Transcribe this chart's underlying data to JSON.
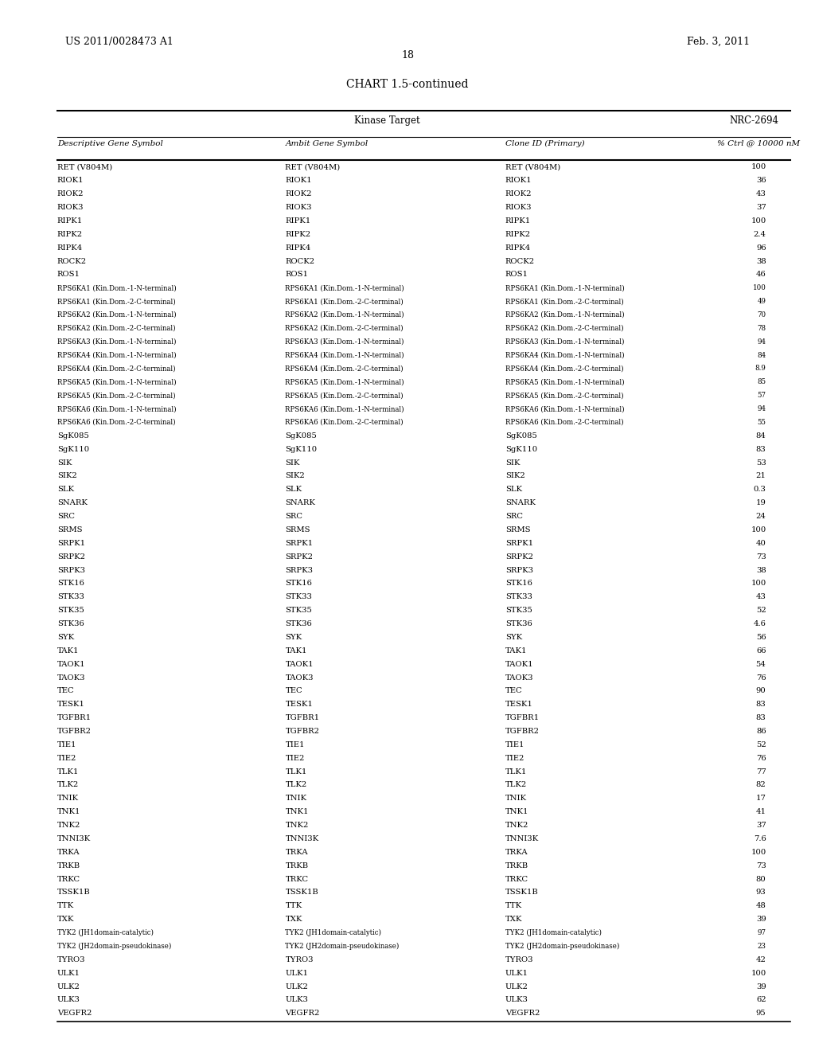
{
  "header_left": "US 2011/0028473 A1",
  "header_right": "Feb. 3, 2011",
  "page_number": "18",
  "chart_title": "CHART 1.5-continued",
  "col_header1": "Kinase Target",
  "col_header2": "NRC-2694",
  "col1_label": "Descriptive Gene Symbol",
  "col2_label": "Ambit Gene Symbol",
  "col3_label": "Clone ID (Primary)",
  "col4_label": "% Ctrl @ 10000 nM",
  "rows": [
    [
      "RET (V804M)",
      "RET (V804M)",
      "RET (V804M)",
      "100"
    ],
    [
      "RIOK1",
      "RIOK1",
      "RIOK1",
      "36"
    ],
    [
      "RIOK2",
      "RIOK2",
      "RIOK2",
      "43"
    ],
    [
      "RIOK3",
      "RIOK3",
      "RIOK3",
      "37"
    ],
    [
      "RIPK1",
      "RIPK1",
      "RIPK1",
      "100"
    ],
    [
      "RIPK2",
      "RIPK2",
      "RIPK2",
      "2.4"
    ],
    [
      "RIPK4",
      "RIPK4",
      "RIPK4",
      "96"
    ],
    [
      "ROCK2",
      "ROCK2",
      "ROCK2",
      "38"
    ],
    [
      "ROS1",
      "ROS1",
      "ROS1",
      "46"
    ],
    [
      "RPS6KA1 (Kin.Dom.-1-N-terminal)",
      "RPS6KA1 (Kin.Dom.-1-N-terminal)",
      "RPS6KA1 (Kin.Dom.-1-N-terminal)",
      "100"
    ],
    [
      "RPS6KA1 (Kin.Dom.-2-C-terminal)",
      "RPS6KA1 (Kin.Dom.-2-C-terminal)",
      "RPS6KA1 (Kin.Dom.-2-C-terminal)",
      "49"
    ],
    [
      "RPS6KA2 (Kin.Dom.-1-N-terminal)",
      "RPS6KA2 (Kin.Dom.-1-N-terminal)",
      "RPS6KA2 (Kin.Dom.-1-N-terminal)",
      "70"
    ],
    [
      "RPS6KA2 (Kin.Dom.-2-C-terminal)",
      "RPS6KA2 (Kin.Dom.-2-C-terminal)",
      "RPS6KA2 (Kin.Dom.-2-C-terminal)",
      "78"
    ],
    [
      "RPS6KA3 (Kin.Dom.-1-N-terminal)",
      "RPS6KA3 (Kin.Dom.-1-N-terminal)",
      "RPS6KA3 (Kin.Dom.-1-N-terminal)",
      "94"
    ],
    [
      "RPS6KA4 (Kin.Dom.-1-N-terminal)",
      "RPS6KA4 (Kin.Dom.-1-N-terminal)",
      "RPS6KA4 (Kin.Dom.-1-N-terminal)",
      "84"
    ],
    [
      "RPS6KA4 (Kin.Dom.-2-C-terminal)",
      "RPS6KA4 (Kin.Dom.-2-C-terminal)",
      "RPS6KA4 (Kin.Dom.-2-C-terminal)",
      "8.9"
    ],
    [
      "RPS6KA5 (Kin.Dom.-1-N-terminal)",
      "RPS6KA5 (Kin.Dom.-1-N-terminal)",
      "RPS6KA5 (Kin.Dom.-1-N-terminal)",
      "85"
    ],
    [
      "RPS6KA5 (Kin.Dom.-2-C-terminal)",
      "RPS6KA5 (Kin.Dom.-2-C-terminal)",
      "RPS6KA5 (Kin.Dom.-2-C-terminal)",
      "57"
    ],
    [
      "RPS6KA6 (Kin.Dom.-1-N-terminal)",
      "RPS6KA6 (Kin.Dom.-1-N-terminal)",
      "RPS6KA6 (Kin.Dom.-1-N-terminal)",
      "94"
    ],
    [
      "RPS6KA6 (Kin.Dom.-2-C-terminal)",
      "RPS6KA6 (Kin.Dom.-2-C-terminal)",
      "RPS6KA6 (Kin.Dom.-2-C-terminal)",
      "55"
    ],
    [
      "SgK085",
      "SgK085",
      "SgK085",
      "84"
    ],
    [
      "SgK110",
      "SgK110",
      "SgK110",
      "83"
    ],
    [
      "SIK",
      "SIK",
      "SIK",
      "53"
    ],
    [
      "SIK2",
      "SIK2",
      "SIK2",
      "21"
    ],
    [
      "SLK",
      "SLK",
      "SLK",
      "0.3"
    ],
    [
      "SNARK",
      "SNARK",
      "SNARK",
      "19"
    ],
    [
      "SRC",
      "SRC",
      "SRC",
      "24"
    ],
    [
      "SRMS",
      "SRMS",
      "SRMS",
      "100"
    ],
    [
      "SRPK1",
      "SRPK1",
      "SRPK1",
      "40"
    ],
    [
      "SRPK2",
      "SRPK2",
      "SRPK2",
      "73"
    ],
    [
      "SRPK3",
      "SRPK3",
      "SRPK3",
      "38"
    ],
    [
      "STK16",
      "STK16",
      "STK16",
      "100"
    ],
    [
      "STK33",
      "STK33",
      "STK33",
      "43"
    ],
    [
      "STK35",
      "STK35",
      "STK35",
      "52"
    ],
    [
      "STK36",
      "STK36",
      "STK36",
      "4.6"
    ],
    [
      "SYK",
      "SYK",
      "SYK",
      "56"
    ],
    [
      "TAK1",
      "TAK1",
      "TAK1",
      "66"
    ],
    [
      "TAOK1",
      "TAOK1",
      "TAOK1",
      "54"
    ],
    [
      "TAOK3",
      "TAOK3",
      "TAOK3",
      "76"
    ],
    [
      "TEC",
      "TEC",
      "TEC",
      "90"
    ],
    [
      "TESK1",
      "TESK1",
      "TESK1",
      "83"
    ],
    [
      "TGFBR1",
      "TGFBR1",
      "TGFBR1",
      "83"
    ],
    [
      "TGFBR2",
      "TGFBR2",
      "TGFBR2",
      "86"
    ],
    [
      "TIE1",
      "TIE1",
      "TIE1",
      "52"
    ],
    [
      "TIE2",
      "TIE2",
      "TIE2",
      "76"
    ],
    [
      "TLK1",
      "TLK1",
      "TLK1",
      "77"
    ],
    [
      "TLK2",
      "TLK2",
      "TLK2",
      "82"
    ],
    [
      "TNIK",
      "TNIK",
      "TNIK",
      "17"
    ],
    [
      "TNK1",
      "TNK1",
      "TNK1",
      "41"
    ],
    [
      "TNK2",
      "TNK2",
      "TNK2",
      "37"
    ],
    [
      "TNNI3K",
      "TNNI3K",
      "TNNI3K",
      "7.6"
    ],
    [
      "TRKA",
      "TRKA",
      "TRKA",
      "100"
    ],
    [
      "TRKB",
      "TRKB",
      "TRKB",
      "73"
    ],
    [
      "TRKC",
      "TRKC",
      "TRKC",
      "80"
    ],
    [
      "TSSK1B",
      "TSSK1B",
      "TSSK1B",
      "93"
    ],
    [
      "TTK",
      "TTK",
      "TTK",
      "48"
    ],
    [
      "TXK",
      "TXK",
      "TXK",
      "39"
    ],
    [
      "TYK2 (JH1domain-catalytic)",
      "TYK2 (JH1domain-catalytic)",
      "TYK2 (JH1domain-catalytic)",
      "97"
    ],
    [
      "TYK2 (JH2domain-pseudokinase)",
      "TYK2 (JH2domain-pseudokinase)",
      "TYK2 (JH2domain-pseudokinase)",
      "23"
    ],
    [
      "TYRO3",
      "TYRO3",
      "TYRO3",
      "42"
    ],
    [
      "ULK1",
      "ULK1",
      "ULK1",
      "100"
    ],
    [
      "ULK2",
      "ULK2",
      "ULK2",
      "39"
    ],
    [
      "ULK3",
      "ULK3",
      "ULK3",
      "62"
    ],
    [
      "VEGFR2",
      "VEGFR2",
      "VEGFR2",
      "95"
    ]
  ]
}
